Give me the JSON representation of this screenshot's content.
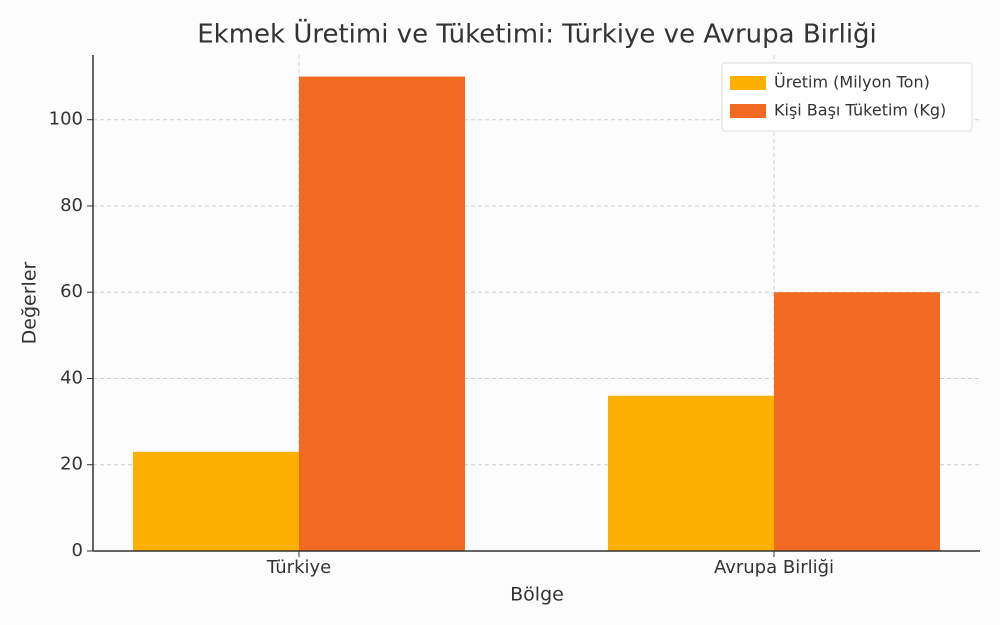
{
  "chart_data": {
    "type": "bar",
    "title": "Ekmek Üretimi ve Tüketimi: Türkiye ve Avrupa Birliği",
    "x_label": "Bölge",
    "y_label": "Değerler",
    "categories": [
      "Türkiye",
      "Avrupa Birliği"
    ],
    "series": [
      {
        "name": "Üretim (Milyon Ton)",
        "color": "#fdb002",
        "values": [
          23,
          36
        ]
      },
      {
        "name": "Kişi Başı Tüketim (Kg)",
        "color": "#f26922",
        "values": [
          110,
          60
        ]
      }
    ],
    "ylim": [
      0,
      115
    ],
    "yticks": [
      0,
      20,
      40,
      60,
      80,
      100
    ],
    "grid": true,
    "legend": "upper right"
  }
}
